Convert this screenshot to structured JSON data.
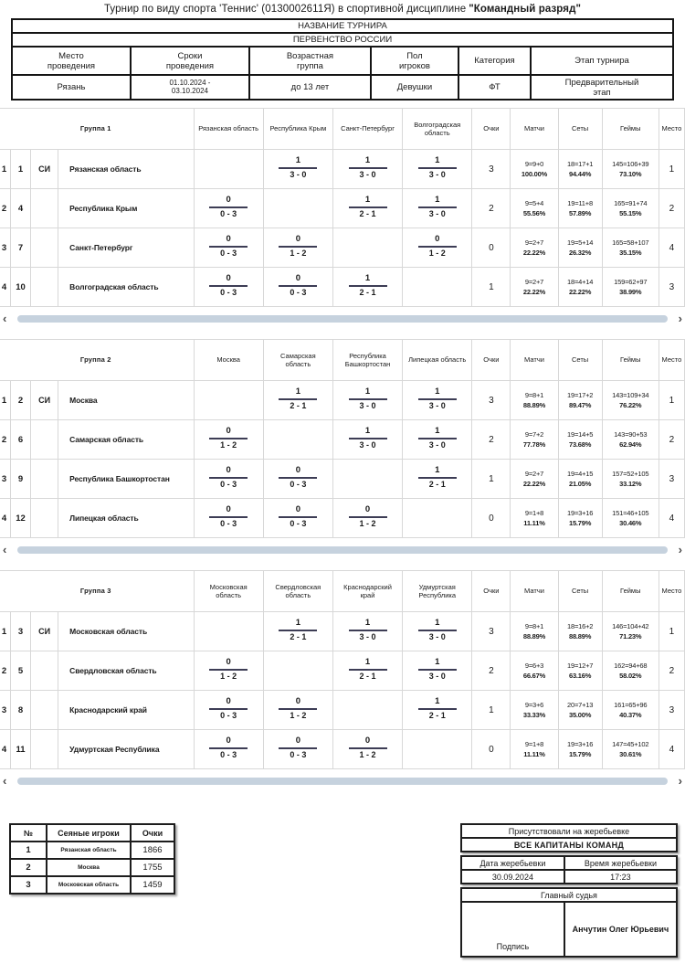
{
  "title": {
    "text": "Турнир по виду спорта 'Теннис' (0130002611Я) в спортивной дисциплине",
    "emphasis": "\"Командный разряд\""
  },
  "tournament": {
    "name_label": "НАЗВАНИЕ ТУРНИРА",
    "name_value": "ПЕРВЕНСТВО РОССИИ",
    "columns": [
      "Место проведения",
      "Сроки проведения",
      "Возрастная группа",
      "Пол игроков",
      "Категория",
      "Этап турнира"
    ],
    "values": [
      "Рязань",
      "01.10.2024 - 03.10.2024",
      "до 13 лет",
      "Девушки",
      "ФТ",
      "Предварительный этап"
    ]
  },
  "stat_headers": [
    "Очки",
    "Матчи",
    "Сеты",
    "Геймы",
    "Место"
  ],
  "scrollbar": {
    "left": "‹",
    "right": "›"
  },
  "groups": [
    {
      "name": "Группа 1",
      "opponents": [
        "Рязанская область",
        "Республика Крым",
        "Санкт-Петербург",
        "Волгоградская область"
      ],
      "rows": [
        {
          "pos": "1",
          "seed": "1",
          "si": "СИ",
          "team": "Рязанская область",
          "cells": [
            null,
            {
              "w": "1",
              "s": "3 - 0"
            },
            {
              "w": "1",
              "s": "3 - 0"
            },
            {
              "w": "1",
              "s": "3 - 0"
            }
          ],
          "points": "3",
          "stats": [
            [
              "9=9+0",
              "100.00%"
            ],
            [
              "18=17+1",
              "94.44%"
            ],
            [
              "145=106+39",
              "73.10%"
            ]
          ],
          "place": "1"
        },
        {
          "pos": "2",
          "seed": "4",
          "si": "",
          "team": "Республика Крым",
          "cells": [
            {
              "w": "0",
              "s": "0 - 3"
            },
            null,
            {
              "w": "1",
              "s": "2 - 1"
            },
            {
              "w": "1",
              "s": "3 - 0"
            }
          ],
          "points": "2",
          "stats": [
            [
              "9=5+4",
              "55.56%"
            ],
            [
              "19=11+8",
              "57.89%"
            ],
            [
              "165=91+74",
              "55.15%"
            ]
          ],
          "place": "2"
        },
        {
          "pos": "3",
          "seed": "7",
          "si": "",
          "team": "Санкт-Петербург",
          "cells": [
            {
              "w": "0",
              "s": "0 - 3"
            },
            {
              "w": "0",
              "s": "1 - 2"
            },
            null,
            {
              "w": "0",
              "s": "1 - 2"
            }
          ],
          "points": "0",
          "stats": [
            [
              "9=2+7",
              "22.22%"
            ],
            [
              "19=5+14",
              "26.32%"
            ],
            [
              "165=58+107",
              "35.15%"
            ]
          ],
          "place": "4"
        },
        {
          "pos": "4",
          "seed": "10",
          "si": "",
          "team": "Волгоградская область",
          "cells": [
            {
              "w": "0",
              "s": "0 - 3"
            },
            {
              "w": "0",
              "s": "0 - 3"
            },
            {
              "w": "1",
              "s": "2 - 1"
            },
            null
          ],
          "points": "1",
          "stats": [
            [
              "9=2+7",
              "22.22%"
            ],
            [
              "18=4+14",
              "22.22%"
            ],
            [
              "159=62+97",
              "38.99%"
            ]
          ],
          "place": "3"
        }
      ]
    },
    {
      "name": "Группа 2",
      "opponents": [
        "Москва",
        "Самарская область",
        "Республика Башкортостан",
        "Липецкая область"
      ],
      "rows": [
        {
          "pos": "1",
          "seed": "2",
          "si": "СИ",
          "team": "Москва",
          "cells": [
            null,
            {
              "w": "1",
              "s": "2 - 1"
            },
            {
              "w": "1",
              "s": "3 - 0"
            },
            {
              "w": "1",
              "s": "3 - 0"
            }
          ],
          "points": "3",
          "stats": [
            [
              "9=8+1",
              "88.89%"
            ],
            [
              "19=17+2",
              "89.47%"
            ],
            [
              "143=109+34",
              "76.22%"
            ]
          ],
          "place": "1"
        },
        {
          "pos": "2",
          "seed": "6",
          "si": "",
          "team": "Самарская область",
          "cells": [
            {
              "w": "0",
              "s": "1 - 2"
            },
            null,
            {
              "w": "1",
              "s": "3 - 0"
            },
            {
              "w": "1",
              "s": "3 - 0"
            }
          ],
          "points": "2",
          "stats": [
            [
              "9=7+2",
              "77.78%"
            ],
            [
              "19=14+5",
              "73.68%"
            ],
            [
              "143=90+53",
              "62.94%"
            ]
          ],
          "place": "2"
        },
        {
          "pos": "3",
          "seed": "9",
          "si": "",
          "team": "Республика Башкортостан",
          "cells": [
            {
              "w": "0",
              "s": "0 - 3"
            },
            {
              "w": "0",
              "s": "0 - 3"
            },
            null,
            {
              "w": "1",
              "s": "2 - 1"
            }
          ],
          "points": "1",
          "stats": [
            [
              "9=2+7",
              "22.22%"
            ],
            [
              "19=4+15",
              "21.05%"
            ],
            [
              "157=52+105",
              "33.12%"
            ]
          ],
          "place": "3"
        },
        {
          "pos": "4",
          "seed": "12",
          "si": "",
          "team": "Липецкая область",
          "cells": [
            {
              "w": "0",
              "s": "0 - 3"
            },
            {
              "w": "0",
              "s": "0 - 3"
            },
            {
              "w": "0",
              "s": "1 - 2"
            },
            null
          ],
          "points": "0",
          "stats": [
            [
              "9=1+8",
              "11.11%"
            ],
            [
              "19=3+16",
              "15.79%"
            ],
            [
              "151=46+105",
              "30.46%"
            ]
          ],
          "place": "4"
        }
      ]
    },
    {
      "name": "Группа 3",
      "opponents": [
        "Московская область",
        "Свердловская область",
        "Краснодарский край",
        "Удмуртская Республика"
      ],
      "rows": [
        {
          "pos": "1",
          "seed": "3",
          "si": "СИ",
          "team": "Московская область",
          "cells": [
            null,
            {
              "w": "1",
              "s": "2 - 1"
            },
            {
              "w": "1",
              "s": "3 - 0"
            },
            {
              "w": "1",
              "s": "3 - 0"
            }
          ],
          "points": "3",
          "stats": [
            [
              "9=8+1",
              "88.89%"
            ],
            [
              "18=16+2",
              "88.89%"
            ],
            [
              "146=104+42",
              "71.23%"
            ]
          ],
          "place": "1"
        },
        {
          "pos": "2",
          "seed": "5",
          "si": "",
          "team": "Свердловская область",
          "cells": [
            {
              "w": "0",
              "s": "1 - 2"
            },
            null,
            {
              "w": "1",
              "s": "2 - 1"
            },
            {
              "w": "1",
              "s": "3 - 0"
            }
          ],
          "points": "2",
          "stats": [
            [
              "9=6+3",
              "66.67%"
            ],
            [
              "19=12+7",
              "63.16%"
            ],
            [
              "162=94+68",
              "58.02%"
            ]
          ],
          "place": "2"
        },
        {
          "pos": "3",
          "seed": "8",
          "si": "",
          "team": "Краснодарский край",
          "cells": [
            {
              "w": "0",
              "s": "0 - 3"
            },
            {
              "w": "0",
              "s": "1 - 2"
            },
            null,
            {
              "w": "1",
              "s": "2 - 1"
            }
          ],
          "points": "1",
          "stats": [
            [
              "9=3+6",
              "33.33%"
            ],
            [
              "20=7+13",
              "35.00%"
            ],
            [
              "161=65+96",
              "40.37%"
            ]
          ],
          "place": "3"
        },
        {
          "pos": "4",
          "seed": "11",
          "si": "",
          "team": "Удмуртская Республика",
          "cells": [
            {
              "w": "0",
              "s": "0 - 3"
            },
            {
              "w": "0",
              "s": "0 - 3"
            },
            {
              "w": "0",
              "s": "1 - 2"
            },
            null
          ],
          "points": "0",
          "stats": [
            [
              "9=1+8",
              "11.11%"
            ],
            [
              "19=3+16",
              "15.79%"
            ],
            [
              "147=45+102",
              "30.61%"
            ]
          ],
          "place": "4"
        }
      ]
    }
  ],
  "seeded_table": {
    "headers": [
      "№",
      "Сеяные игроки",
      "Очки"
    ],
    "rows": [
      [
        "1",
        "Рязанская область",
        "1866"
      ],
      [
        "2",
        "Москва",
        "1755"
      ],
      [
        "3",
        "Московская область",
        "1459"
      ]
    ]
  },
  "draw": {
    "present_title": "Присутствовали на жеребьевке",
    "present_value": "ВСЕ КАПИТАНЫ КОМАНД",
    "date_label": "Дата жеребьевки",
    "time_label": "Время жеребьевки",
    "date_value": "30.09.2024",
    "time_value": "17:23",
    "judge_title": "Главный судья",
    "signature_label": "Подпись",
    "judge_name": "Анчутин Олег Юрьевич"
  }
}
